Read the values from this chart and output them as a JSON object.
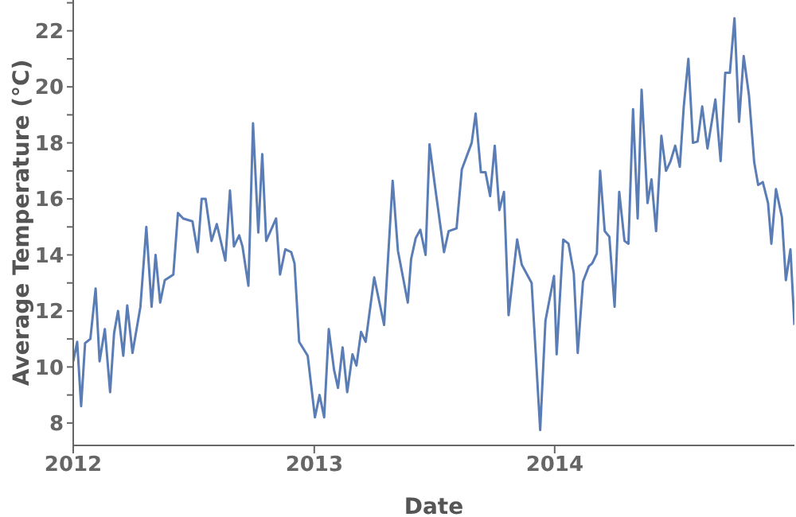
{
  "chart_data": {
    "type": "line",
    "xlabel": "Date",
    "ylabel": "Average Temperature  (°C)",
    "xlim": [
      "2012-01-01",
      "2014-12-31"
    ],
    "xticks": [
      "2012",
      "2013",
      "2014"
    ],
    "ylim": [
      7.2,
      23.1
    ],
    "yticks": [
      8,
      {
        "value": 9,
        "label": null
      },
      10,
      {
        "value": 11,
        "label": null
      },
      12,
      {
        "value": 13,
        "label": null
      },
      14,
      {
        "value": 15,
        "label": null
      },
      16,
      {
        "value": 17,
        "label": null
      },
      18,
      {
        "value": 19,
        "label": null
      },
      20,
      {
        "value": 21,
        "label": null
      },
      22,
      {
        "value": 23,
        "label": null
      }
    ],
    "grid": false,
    "legend": false,
    "marker": "none",
    "line_style": "solid",
    "x": [
      "2012-01-01",
      "2012-01-07",
      "2012-01-13",
      "2012-01-19",
      "2012-01-27",
      "2012-02-04",
      "2012-02-10",
      "2012-02-18",
      "2012-02-26",
      "2012-03-03",
      "2012-03-09",
      "2012-03-17",
      "2012-03-23",
      "2012-03-31",
      "2012-04-12",
      "2012-04-21",
      "2012-04-29",
      "2012-05-05",
      "2012-05-12",
      "2012-05-19",
      "2012-06-01",
      "2012-06-08",
      "2012-06-16",
      "2012-06-30",
      "2012-07-08",
      "2012-07-14",
      "2012-07-20",
      "2012-07-29",
      "2012-08-06",
      "2012-08-19",
      "2012-08-26",
      "2012-09-01",
      "2012-09-09",
      "2012-09-14",
      "2012-09-23",
      "2012-09-30",
      "2012-10-08",
      "2012-10-14",
      "2012-10-20",
      "2012-11-04",
      "2012-11-10",
      "2012-11-18",
      "2012-11-27",
      "2012-12-02",
      "2012-12-09",
      "2012-12-22",
      "2013-01-02",
      "2013-01-09",
      "2013-01-16",
      "2013-01-23",
      "2013-01-31",
      "2013-02-06",
      "2013-02-13",
      "2013-02-20",
      "2013-02-28",
      "2013-03-06",
      "2013-03-13",
      "2013-03-20",
      "2013-04-02",
      "2013-04-17",
      "2013-04-30",
      "2013-05-08",
      "2013-05-23",
      "2013-05-28",
      "2013-06-04",
      "2013-06-11",
      "2013-06-19",
      "2013-06-25",
      "2013-07-03",
      "2013-07-12",
      "2013-07-17",
      "2013-07-24",
      "2013-08-05",
      "2013-08-13",
      "2013-08-28",
      "2013-09-03",
      "2013-09-11",
      "2013-09-18",
      "2013-09-25",
      "2013-10-02",
      "2013-10-09",
      "2013-10-16",
      "2013-10-23",
      "2013-11-05",
      "2013-11-12",
      "2013-11-27",
      "2013-12-10",
      "2013-12-18",
      "2013-12-31",
      "2014-01-04",
      "2014-01-14",
      "2014-01-22",
      "2014-01-30",
      "2014-02-05",
      "2014-02-13",
      "2014-02-22",
      "2014-02-27",
      "2014-03-06",
      "2014-03-11",
      "2014-03-18",
      "2014-03-25",
      "2014-04-02",
      "2014-04-09",
      "2014-04-17",
      "2014-04-23",
      "2014-04-30",
      "2014-05-07",
      "2014-05-13",
      "2014-05-22",
      "2014-05-28",
      "2014-06-04",
      "2014-06-12",
      "2014-06-19",
      "2014-06-26",
      "2014-07-03",
      "2014-07-10",
      "2014-07-16",
      "2014-07-23",
      "2014-07-30",
      "2014-08-06",
      "2014-08-13",
      "2014-08-21",
      "2014-09-02",
      "2014-09-10",
      "2014-09-17",
      "2014-09-24",
      "2014-10-01",
      "2014-10-08",
      "2014-10-15",
      "2014-10-23",
      "2014-10-31",
      "2014-11-06",
      "2014-11-13",
      "2014-11-21",
      "2014-11-26",
      "2014-12-03",
      "2014-12-12",
      "2014-12-18",
      "2014-12-25",
      "2014-12-31"
    ],
    "series": [
      {
        "color": "#5b7db5",
        "values": [
          10.2,
          10.9,
          8.6,
          10.85,
          11.0,
          12.8,
          10.2,
          11.35,
          9.1,
          11.2,
          12.0,
          10.4,
          12.2,
          10.5,
          12.15,
          15.0,
          12.15,
          14.0,
          12.3,
          13.1,
          13.3,
          15.5,
          15.3,
          15.2,
          14.1,
          16.0,
          16.0,
          14.5,
          15.1,
          13.8,
          16.3,
          14.3,
          14.7,
          14.3,
          12.9,
          18.7,
          14.8,
          17.6,
          14.5,
          15.3,
          13.3,
          14.2,
          14.1,
          13.7,
          10.9,
          10.4,
          8.2,
          9.0,
          8.2,
          11.35,
          9.9,
          9.25,
          10.7,
          9.1,
          10.45,
          10.05,
          11.25,
          10.9,
          13.2,
          11.5,
          16.65,
          14.15,
          12.3,
          13.85,
          14.6,
          14.9,
          14.0,
          17.95,
          16.5,
          14.95,
          14.1,
          14.85,
          14.95,
          17.05,
          18.0,
          19.05,
          16.95,
          16.95,
          16.1,
          17.9,
          15.6,
          16.25,
          11.85,
          14.55,
          13.65,
          13.0,
          7.75,
          11.65,
          13.25,
          10.45,
          14.55,
          14.4,
          13.35,
          10.5,
          13.05,
          13.6,
          13.7,
          14.05,
          17.0,
          14.85,
          14.65,
          12.15,
          16.25,
          14.5,
          14.4,
          19.2,
          15.3,
          19.9,
          15.85,
          16.7,
          14.85,
          18.25,
          17.0,
          17.35,
          17.9,
          17.15,
          19.3,
          21.0,
          18.0,
          18.05,
          19.3,
          17.8,
          19.55,
          17.35,
          20.5,
          20.5,
          22.45,
          18.75,
          21.1,
          19.7,
          17.3,
          16.5,
          16.6,
          15.85,
          14.4,
          16.35,
          15.35,
          13.1,
          14.2,
          11.5
        ]
      }
    ]
  }
}
